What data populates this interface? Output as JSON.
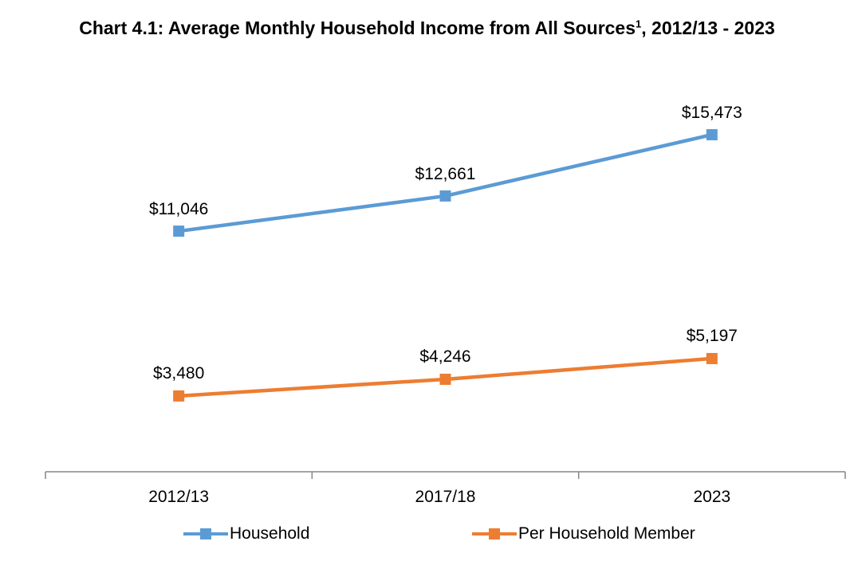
{
  "title": {
    "main": "Chart 4.1: Average Monthly Household Income from All Sources",
    "superscript": "1",
    "suffix": ", 2012/13 - 2023"
  },
  "chart_data": {
    "type": "line",
    "title": "Chart 4.1: Average Monthly Household Income from All Sources1, 2012/13 - 2023",
    "categories": [
      "2012/13",
      "2017/18",
      "2023"
    ],
    "series": [
      {
        "name": "Household",
        "values": [
          11046,
          12661,
          15473
        ],
        "labels": [
          "$11,046",
          "$12,661",
          "$15,473"
        ],
        "color": "#5B9BD5"
      },
      {
        "name": "Per Household Member",
        "values": [
          3480,
          4246,
          5197
        ],
        "labels": [
          "$3,480",
          "$4,246",
          "$5,197"
        ],
        "color": "#ED7D31"
      }
    ],
    "xlabel": "",
    "ylabel": "",
    "ylim": [
      0,
      18000
    ],
    "grid": false,
    "y_axis_visible": false,
    "marker": "square",
    "legend_position": "bottom"
  },
  "legend": [
    {
      "label": "Household",
      "color": "#5B9BD5"
    },
    {
      "label": "Per Household Member",
      "color": "#ED7D31"
    }
  ]
}
